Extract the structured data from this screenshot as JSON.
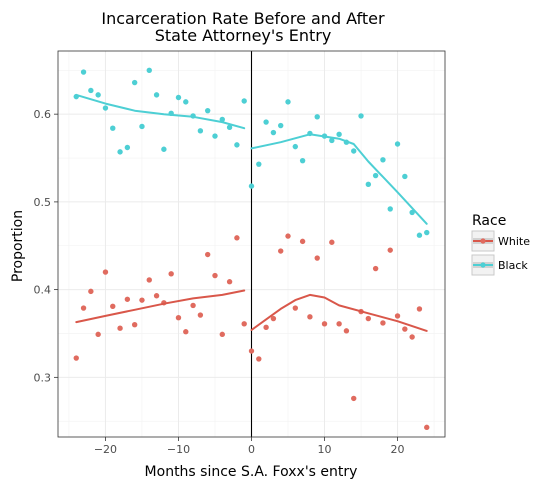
{
  "chart_data": {
    "type": "scatter",
    "title": [
      "Incarceration Rate Before and After",
      "State Attorney's Entry"
    ],
    "xlabel": "Months since S.A. Foxx's entry",
    "ylabel": "Proportion",
    "xlim": [
      -26.5,
      26.5
    ],
    "ylim": [
      0.232,
      0.672
    ],
    "xticks": [
      -20,
      -10,
      0,
      10,
      20
    ],
    "xtick_labels": [
      "−20",
      "−10",
      "0",
      "10",
      "20"
    ],
    "yticks": [
      0.3,
      0.4,
      0.5,
      0.6
    ],
    "ytick_labels": [
      "0.3",
      "0.4",
      "0.5",
      "0.6"
    ],
    "vline_x": 0,
    "grid": true,
    "legend": {
      "title": "Race",
      "placement": "right",
      "entries": [
        "White",
        "Black"
      ]
    },
    "series": [
      {
        "name": "White",
        "color": "#E06B5F",
        "line_color": "#D9574A",
        "points": [
          [
            -24,
            0.322
          ],
          [
            -23,
            0.379
          ],
          [
            -22,
            0.398
          ],
          [
            -21,
            0.349
          ],
          [
            -20,
            0.42
          ],
          [
            -19,
            0.381
          ],
          [
            -18,
            0.356
          ],
          [
            -17,
            0.389
          ],
          [
            -16,
            0.36
          ],
          [
            -15,
            0.388
          ],
          [
            -14,
            0.411
          ],
          [
            -13,
            0.393
          ],
          [
            -12,
            0.385
          ],
          [
            -11,
            0.418
          ],
          [
            -10,
            0.368
          ],
          [
            -9,
            0.352
          ],
          [
            -8,
            0.382
          ],
          [
            -7,
            0.371
          ],
          [
            -6,
            0.44
          ],
          [
            -5,
            0.416
          ],
          [
            -4,
            0.349
          ],
          [
            -3,
            0.409
          ],
          [
            -2,
            0.459
          ],
          [
            -1,
            0.361
          ],
          [
            0,
            0.33
          ],
          [
            1,
            0.321
          ],
          [
            2,
            0.357
          ],
          [
            3,
            0.367
          ],
          [
            4,
            0.444
          ],
          [
            5,
            0.461
          ],
          [
            6,
            0.379
          ],
          [
            7,
            0.455
          ],
          [
            8,
            0.369
          ],
          [
            9,
            0.436
          ],
          [
            10,
            0.361
          ],
          [
            11,
            0.454
          ],
          [
            12,
            0.361
          ],
          [
            13,
            0.353
          ],
          [
            14,
            0.276
          ],
          [
            15,
            0.375
          ],
          [
            16,
            0.367
          ],
          [
            17,
            0.424
          ],
          [
            18,
            0.362
          ],
          [
            19,
            0.445
          ],
          [
            20,
            0.37
          ],
          [
            21,
            0.355
          ],
          [
            22,
            0.346
          ],
          [
            23,
            0.378
          ],
          [
            24,
            0.243
          ]
        ],
        "smooth_before": [
          [
            -24,
            0.363
          ],
          [
            -20,
            0.37
          ],
          [
            -16,
            0.377
          ],
          [
            -12,
            0.384
          ],
          [
            -8,
            0.39
          ],
          [
            -4,
            0.394
          ],
          [
            -1,
            0.399
          ]
        ],
        "smooth_after": [
          [
            0,
            0.354
          ],
          [
            2,
            0.366
          ],
          [
            4,
            0.378
          ],
          [
            6,
            0.388
          ],
          [
            8,
            0.394
          ],
          [
            10,
            0.391
          ],
          [
            12,
            0.382
          ],
          [
            16,
            0.373
          ],
          [
            20,
            0.364
          ],
          [
            24,
            0.353
          ]
        ]
      },
      {
        "name": "Black",
        "color": "#4DCFD4",
        "line_color": "#4DCFD4",
        "points": [
          [
            -24,
            0.62
          ],
          [
            -23,
            0.648
          ],
          [
            -22,
            0.627
          ],
          [
            -21,
            0.622
          ],
          [
            -20,
            0.607
          ],
          [
            -19,
            0.584
          ],
          [
            -18,
            0.557
          ],
          [
            -17,
            0.562
          ],
          [
            -16,
            0.636
          ],
          [
            -15,
            0.586
          ],
          [
            -14,
            0.65
          ],
          [
            -13,
            0.622
          ],
          [
            -12,
            0.56
          ],
          [
            -11,
            0.601
          ],
          [
            -10,
            0.619
          ],
          [
            -9,
            0.614
          ],
          [
            -8,
            0.598
          ],
          [
            -7,
            0.581
          ],
          [
            -6,
            0.604
          ],
          [
            -5,
            0.575
          ],
          [
            -4,
            0.594
          ],
          [
            -3,
            0.585
          ],
          [
            -2,
            0.565
          ],
          [
            -1,
            0.615
          ],
          [
            0,
            0.518
          ],
          [
            1,
            0.543
          ],
          [
            2,
            0.591
          ],
          [
            3,
            0.579
          ],
          [
            4,
            0.587
          ],
          [
            5,
            0.614
          ],
          [
            6,
            0.563
          ],
          [
            7,
            0.547
          ],
          [
            8,
            0.578
          ],
          [
            9,
            0.597
          ],
          [
            10,
            0.575
          ],
          [
            11,
            0.57
          ],
          [
            12,
            0.577
          ],
          [
            13,
            0.568
          ],
          [
            14,
            0.558
          ],
          [
            15,
            0.598
          ],
          [
            16,
            0.52
          ],
          [
            17,
            0.53
          ],
          [
            18,
            0.548
          ],
          [
            19,
            0.492
          ],
          [
            20,
            0.566
          ],
          [
            21,
            0.529
          ],
          [
            22,
            0.488
          ],
          [
            23,
            0.462
          ],
          [
            24,
            0.465
          ]
        ],
        "smooth_before": [
          [
            -24,
            0.622
          ],
          [
            -20,
            0.612
          ],
          [
            -16,
            0.604
          ],
          [
            -12,
            0.6
          ],
          [
            -8,
            0.597
          ],
          [
            -4,
            0.591
          ],
          [
            -1,
            0.584
          ]
        ],
        "smooth_after": [
          [
            0,
            0.561
          ],
          [
            4,
            0.568
          ],
          [
            8,
            0.577
          ],
          [
            12,
            0.572
          ],
          [
            14,
            0.566
          ],
          [
            16,
            0.546
          ],
          [
            20,
            0.511
          ],
          [
            24,
            0.475
          ]
        ]
      }
    ]
  }
}
